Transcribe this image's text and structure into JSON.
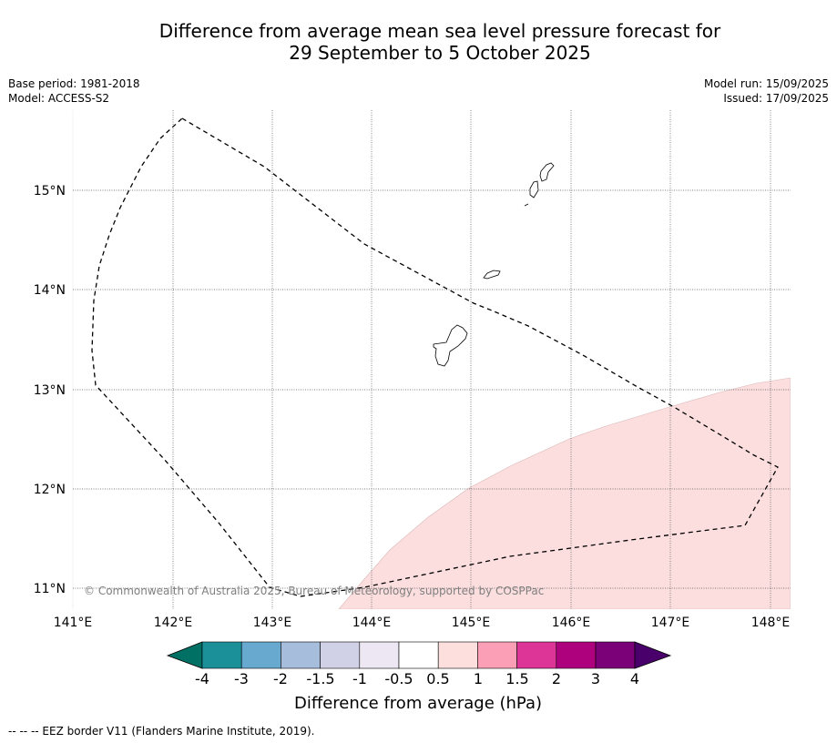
{
  "header": {
    "title_line1": "Difference from average mean sea level pressure forecast for",
    "title_line2": "29 September to 5 October 2025",
    "base_period": "Base period: 1981-2018",
    "model": "Model: ACCESS-S2",
    "model_run": "Model run: 15/09/2025",
    "issued": "Issued: 17/09/2025"
  },
  "map": {
    "lon_labels": [
      "141°E",
      "142°E",
      "143°E",
      "144°E",
      "145°E",
      "146°E",
      "147°E",
      "148°E"
    ],
    "lat_labels": [
      "15°N",
      "14°N",
      "13°N",
      "12°N",
      "11°N"
    ],
    "copyright": "© Commonwealth of Australia 2025, Bureau of Meteorology, supported by COSPPac",
    "anomaly_fill_color": "#fcdede",
    "anomaly_category": "0.5 to 1 hPa above average"
  },
  "colorbar": {
    "title": "Difference from average (hPa)",
    "tick_labels": [
      "-4",
      "-3",
      "-2",
      "-1.5",
      "-1",
      "-0.5",
      "0.5",
      "1",
      "1.5",
      "2",
      "3",
      "4"
    ],
    "colors": [
      "#007064",
      "#1c9099",
      "#67a9cf",
      "#a6bddb",
      "#d0d1e6",
      "#ece7f2",
      "#ffffff",
      "#fde0dd",
      "#fa9fb5",
      "#dd3497",
      "#ae017e",
      "#7a0177",
      "#49006a"
    ]
  },
  "footnote": "--  --  -- EEZ border V11 (Flanders Marine Institute, 2019)."
}
